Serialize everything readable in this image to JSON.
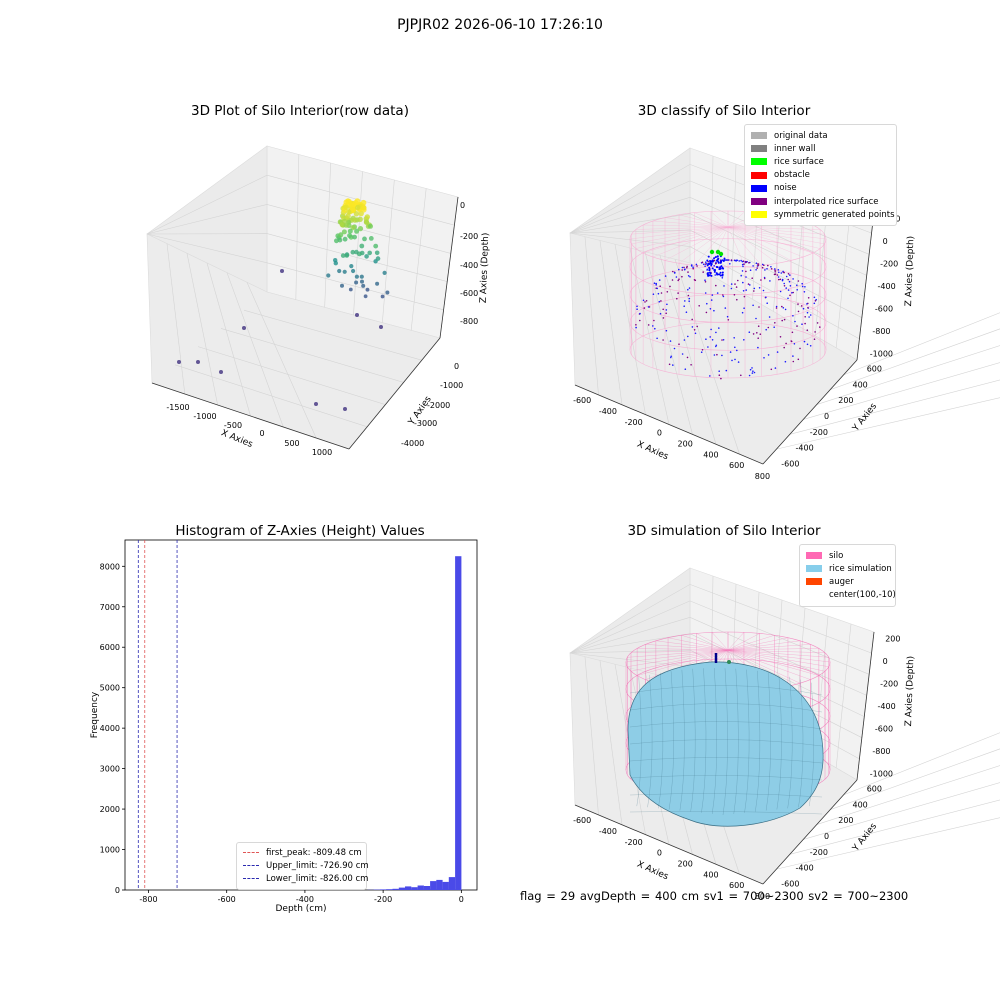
{
  "suptitle": "PJPJR02 2026-06-10 17:26:10",
  "footer": "flag = 29  avgDepth = 400 cm  sv1 = 700~2300  sv2 = 700~2300",
  "colors": {
    "histogram_bar": "#4a4ae8",
    "first_peak_line": "#e05555",
    "limit_line": "#2a2ab0",
    "silo_wire": "#f472b6",
    "rice_fill": "#8ecde6",
    "rice_edge": "#3b6f85"
  },
  "panels": {
    "raw": {
      "title": "3D Plot of Silo Interior(row data)",
      "x_label": "X Axies",
      "y_label": "Y Axies",
      "z_label": "Z Axies (Depth)",
      "x_ticks": [
        "-1500",
        "-1000",
        "-500",
        "0",
        "500",
        "1000"
      ],
      "y_ticks": [
        "0",
        "-1000",
        "-2000",
        "-3000",
        "-4000"
      ],
      "z_ticks": [
        "0",
        "-200",
        "-400",
        "-600",
        "-800"
      ]
    },
    "classify": {
      "title": "3D classify of Silo Interior",
      "x_label": "X Axies",
      "y_label": "Y Axies",
      "z_label": "Z Axies (Depth)",
      "x_ticks": [
        "-600",
        "-400",
        "-200",
        "0",
        "200",
        "400",
        "600",
        "800"
      ],
      "y_ticks": [
        "600",
        "400",
        "200",
        "0",
        "-200",
        "-400",
        "-600"
      ],
      "z_ticks": [
        "200",
        "0",
        "-200",
        "-400",
        "-600",
        "-800",
        "-1000"
      ],
      "legend": [
        {
          "label": "original data",
          "color": "#b0b0b0"
        },
        {
          "label": "inner wall",
          "color": "#808080"
        },
        {
          "label": "rice surface",
          "color": "#00ff00"
        },
        {
          "label": "obstacle",
          "color": "#ff0000"
        },
        {
          "label": "noise",
          "color": "#0000ff"
        },
        {
          "label": "interpolated rice surface",
          "color": "#800080"
        },
        {
          "label": "symmetric generated points",
          "color": "#ffff00"
        }
      ]
    },
    "simulation": {
      "title": "3D simulation of Silo Interior",
      "x_label": "X Axies",
      "y_label": "Y Axies",
      "z_label": "Z Axies (Depth)",
      "x_ticks": [
        "-600",
        "-400",
        "-200",
        "0",
        "200",
        "400",
        "600",
        "800"
      ],
      "y_ticks": [
        "600",
        "400",
        "200",
        "0",
        "-200",
        "-400",
        "-600"
      ],
      "z_ticks": [
        "200",
        "0",
        "-200",
        "-400",
        "-600",
        "-800",
        "-1000"
      ],
      "legend": [
        {
          "label": "silo",
          "color": "#ff69b4"
        },
        {
          "label": "rice simulation",
          "color": "#87ceeb"
        },
        {
          "label": "auger",
          "color": "#ff4500"
        },
        {
          "label": "center(100,-10)",
          "color": ""
        }
      ]
    }
  },
  "chart_data": {
    "type": "bar",
    "title": "Histogram of Z-Axies (Height) Values",
    "xlabel": "Depth (cm)",
    "ylabel": "Frequency",
    "xlim": [
      -860,
      40
    ],
    "ylim": [
      0,
      8650
    ],
    "x_ticks": [
      -800,
      -600,
      -400,
      -200,
      0
    ],
    "y_ticks": [
      0,
      1000,
      2000,
      3000,
      4000,
      5000,
      6000,
      7000,
      8000
    ],
    "bin_width": 16,
    "bins": [
      {
        "x0": -240,
        "count": 5
      },
      {
        "x0": -224,
        "count": 10
      },
      {
        "x0": -208,
        "count": 15
      },
      {
        "x0": -192,
        "count": 20
      },
      {
        "x0": -176,
        "count": 30
      },
      {
        "x0": -160,
        "count": 60
      },
      {
        "x0": -144,
        "count": 90
      },
      {
        "x0": -128,
        "count": 70
      },
      {
        "x0": -112,
        "count": 110
      },
      {
        "x0": -96,
        "count": 100
      },
      {
        "x0": -80,
        "count": 220
      },
      {
        "x0": -64,
        "count": 250
      },
      {
        "x0": -48,
        "count": 200
      },
      {
        "x0": -32,
        "count": 320
      },
      {
        "x0": -16,
        "count": 8250
      }
    ],
    "reference_lines": [
      {
        "name": "first_peak: -809.48 cm",
        "value": -809.48,
        "color": "#e05555"
      },
      {
        "name": "Upper_limit: -726.90 cm",
        "value": -726.9,
        "color": "#2a2ab0"
      },
      {
        "name": "Lower_limit: -826.00 cm",
        "value": -826.0,
        "color": "#2a2ab0"
      }
    ],
    "legend_position": "lower center"
  }
}
